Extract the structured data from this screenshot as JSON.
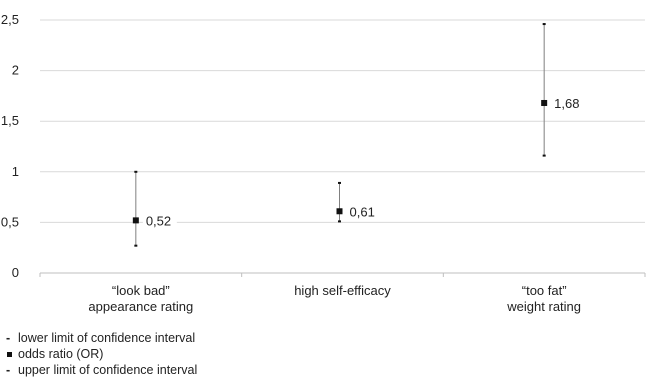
{
  "chart_data": {
    "type": "error-bar",
    "categories": [
      [
        "“look bad”",
        "appearance rating"
      ],
      [
        "high self-efficacy"
      ],
      [
        "“too fat”",
        "weight rating"
      ]
    ],
    "points": [
      {
        "or": 0.52,
        "lower": 0.27,
        "upper": 1.0,
        "label": "0,52"
      },
      {
        "or": 0.61,
        "lower": 0.51,
        "upper": 0.89,
        "label": "0,61"
      },
      {
        "or": 1.68,
        "lower": 1.16,
        "upper": 2.46,
        "label": "1,68"
      }
    ],
    "ylim": [
      0,
      2.5
    ],
    "yticks": [
      {
        "value": 0,
        "label": "0"
      },
      {
        "value": 0.5,
        "label": "0,5"
      },
      {
        "value": 1,
        "label": "1"
      },
      {
        "value": 1.5,
        "label": "1,5"
      },
      {
        "value": 2,
        "label": "2"
      },
      {
        "value": 2.5,
        "label": "2,5"
      }
    ],
    "grid": true,
    "colors": {
      "grid": "#d9d9d9",
      "axis": "#bfbfbf",
      "whisker": "#808080",
      "marker": "#111111"
    }
  },
  "legend": {
    "items": [
      {
        "mark": "-",
        "text": "lower limit of confidence interval"
      },
      {
        "mark": "square",
        "text": "odds ratio (OR)"
      },
      {
        "mark": "-",
        "text": "upper limit of confidence interval"
      }
    ]
  }
}
